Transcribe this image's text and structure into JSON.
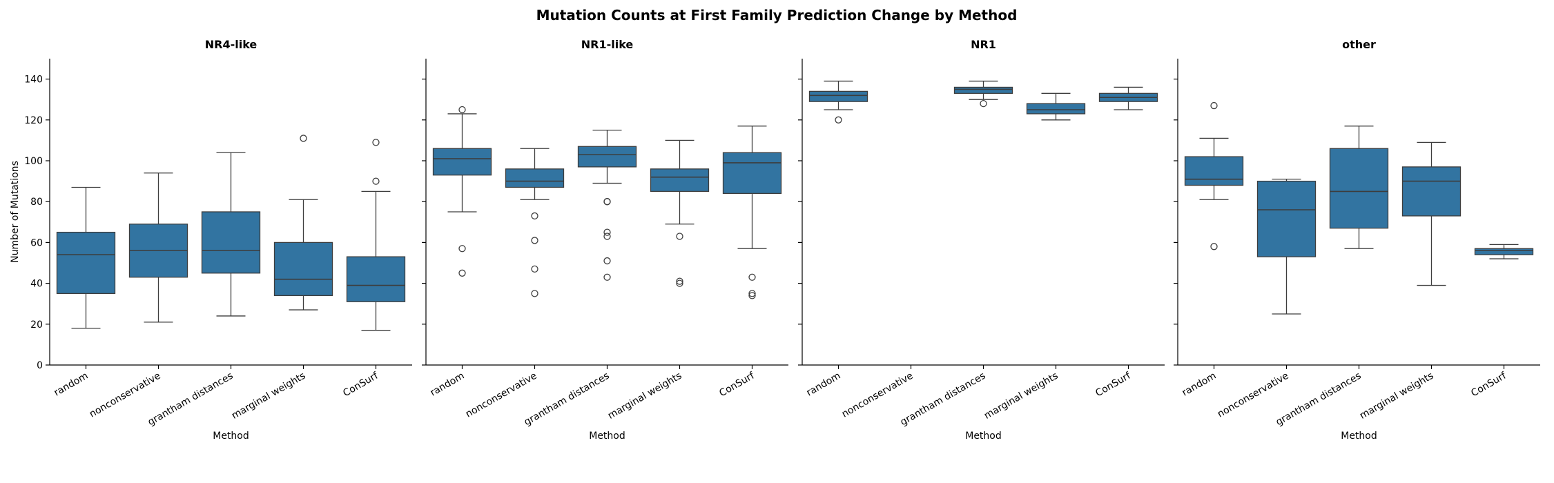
{
  "chart_data": {
    "type": "boxplot",
    "title": "Mutation Counts at First Family Prediction Change by Method",
    "ylabel": "Number of Mutations",
    "xlabel": "Method",
    "ylim": [
      0,
      150
    ],
    "yticks": [
      0,
      20,
      40,
      60,
      80,
      100,
      120,
      140
    ],
    "categories": [
      "random",
      "nonconservative",
      "grantham distances",
      "marginal weights",
      "ConSurf"
    ],
    "box_color": "#3274a1",
    "facets": [
      {
        "title": "NR4-like",
        "boxes": [
          {
            "method": "random",
            "whislo": 18,
            "q1": 35,
            "med": 54,
            "q3": 65,
            "whishi": 87,
            "fliers": []
          },
          {
            "method": "nonconservative",
            "whislo": 21,
            "q1": 43,
            "med": 56,
            "q3": 69,
            "whishi": 94,
            "fliers": []
          },
          {
            "method": "grantham distances",
            "whislo": 24,
            "q1": 45,
            "med": 56,
            "q3": 75,
            "whishi": 104,
            "fliers": []
          },
          {
            "method": "marginal weights",
            "whislo": 27,
            "q1": 34,
            "med": 42,
            "q3": 60,
            "whishi": 81,
            "fliers": [
              111
            ]
          },
          {
            "method": "ConSurf",
            "whislo": 17,
            "q1": 31,
            "med": 39,
            "q3": 53,
            "whishi": 85,
            "fliers": [
              90,
              109
            ]
          }
        ]
      },
      {
        "title": "NR1-like",
        "boxes": [
          {
            "method": "random",
            "whislo": 75,
            "q1": 93,
            "med": 101,
            "q3": 106,
            "whishi": 123,
            "fliers": [
              125,
              57,
              45
            ]
          },
          {
            "method": "nonconservative",
            "whislo": 81,
            "q1": 87,
            "med": 90,
            "q3": 96,
            "whishi": 106,
            "fliers": [
              73,
              61,
              47,
              35
            ]
          },
          {
            "method": "grantham distances",
            "whislo": 89,
            "q1": 97,
            "med": 103,
            "q3": 107,
            "whishi": 115,
            "fliers": [
              80,
              80,
              65,
              63,
              51,
              43
            ]
          },
          {
            "method": "marginal weights",
            "whislo": 69,
            "q1": 85,
            "med": 92,
            "q3": 96,
            "whishi": 110,
            "fliers": [
              63,
              41,
              40
            ]
          },
          {
            "method": "ConSurf",
            "whislo": 57,
            "q1": 84,
            "med": 99,
            "q3": 104,
            "whishi": 117,
            "fliers": [
              43,
              35,
              34
            ]
          }
        ]
      },
      {
        "title": "NR1",
        "boxes": [
          {
            "method": "random",
            "whislo": 125,
            "q1": 129,
            "med": 132,
            "q3": 134,
            "whishi": 139,
            "fliers": [
              120
            ]
          },
          null,
          {
            "method": "grantham distances",
            "whislo": 130,
            "q1": 133,
            "med": 135,
            "q3": 136,
            "whishi": 139,
            "fliers": [
              128
            ]
          },
          {
            "method": "marginal weights",
            "whislo": 120,
            "q1": 123,
            "med": 125,
            "q3": 128,
            "whishi": 133,
            "fliers": []
          },
          {
            "method": "ConSurf",
            "whislo": 125,
            "q1": 129,
            "med": 131,
            "q3": 133,
            "whishi": 136,
            "fliers": []
          }
        ]
      },
      {
        "title": "other",
        "boxes": [
          {
            "method": "random",
            "whislo": 81,
            "q1": 88,
            "med": 91,
            "q3": 102,
            "whishi": 111,
            "fliers": [
              127,
              58
            ]
          },
          {
            "method": "nonconservative",
            "whislo": 25,
            "q1": 53,
            "med": 76,
            "q3": 90,
            "whishi": 91,
            "fliers": []
          },
          {
            "method": "grantham distances",
            "whislo": 57,
            "q1": 67,
            "med": 85,
            "q3": 106,
            "whishi": 117,
            "fliers": []
          },
          {
            "method": "marginal weights",
            "whislo": 39,
            "q1": 73,
            "med": 90,
            "q3": 97,
            "whishi": 109,
            "fliers": []
          },
          {
            "method": "ConSurf",
            "whislo": 52,
            "q1": 54,
            "med": 56,
            "q3": 57,
            "whishi": 59,
            "fliers": []
          }
        ]
      }
    ]
  }
}
